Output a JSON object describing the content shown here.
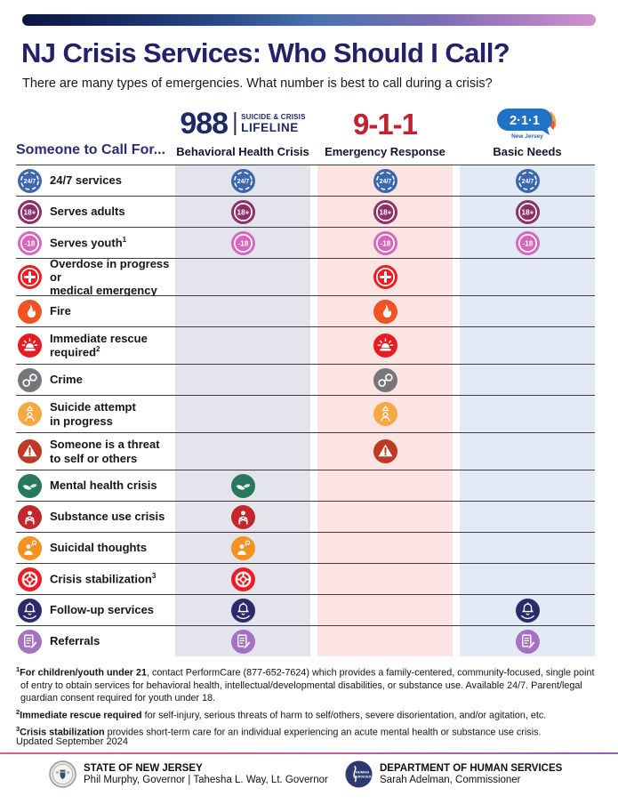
{
  "page": {
    "title": "NJ Crisis Services: Who Should I Call?",
    "subtitle": "There are many types of emergencies. What number is best to call during a crisis?",
    "updated": "Updated September 2024",
    "divider_color": "#3e3e42"
  },
  "columns": [
    {
      "id": "988",
      "logo": {
        "number": "988",
        "tag1": "SUICIDE & CRISIS",
        "tag2": "LIFELINE"
      },
      "label": "Behavioral Health Crisis",
      "band_color": "#e4e5ec",
      "brand_color": "#1d2a63"
    },
    {
      "id": "911",
      "logo": {
        "number": "9-1-1"
      },
      "label": "Emergency Response",
      "band_color": "#fbe4e1",
      "brand_color": "#c22130"
    },
    {
      "id": "211",
      "logo": {
        "number": "2·1·1",
        "sub": "New Jersey"
      },
      "label": "Basic Needs",
      "band_color": "#e2eaf6",
      "brand_color": "#2072c5"
    }
  ],
  "table": {
    "heading": "Someone to Call For...",
    "rows": [
      {
        "label": "24/7 services",
        "icon": "clock-24-7",
        "icon_text": "24/7",
        "color": "#3a67ad",
        "available": [
          true,
          true,
          true
        ]
      },
      {
        "label": "Serves adults",
        "icon": "ring-18-plus",
        "icon_text": "18+",
        "color": "#8e2f68",
        "available": [
          true,
          true,
          true
        ]
      },
      {
        "label": "Serves youth",
        "sup": "1",
        "icon": "ring-under-18",
        "icon_text": "-18",
        "color": "#d667c1",
        "available": [
          true,
          true,
          true
        ]
      },
      {
        "label": "Overdose in progress or\nmedical emergency",
        "icon": "medical-cross",
        "color": "#ec1c24",
        "available": [
          false,
          true,
          false
        ]
      },
      {
        "label": "Fire",
        "icon": "flame",
        "color": "#f05323",
        "available": [
          false,
          true,
          false
        ]
      },
      {
        "label": "Immediate rescue\nrequired",
        "sup": "2",
        "icon": "siren",
        "color": "#e81b23",
        "available": [
          false,
          true,
          false
        ]
      },
      {
        "label": "Crime",
        "icon": "handcuffs",
        "color": "#77767a",
        "available": [
          false,
          true,
          false
        ]
      },
      {
        "label": "Suicide attempt\nin progress",
        "icon": "person-alert",
        "color": "#f6a843",
        "available": [
          false,
          true,
          false
        ]
      },
      {
        "label": "Someone is a threat\nto self or others",
        "icon": "warning-triangle",
        "color": "#bf3a24",
        "available": [
          false,
          true,
          false
        ]
      },
      {
        "label": "Mental health crisis",
        "icon": "helping-hands",
        "color": "#27785c",
        "available": [
          true,
          false,
          false
        ]
      },
      {
        "label": "Substance use crisis",
        "icon": "person-hugging",
        "color": "#c1272d",
        "available": [
          true,
          false,
          false
        ]
      },
      {
        "label": "Suicidal thoughts",
        "icon": "person-thought",
        "color": "#f49120",
        "available": [
          true,
          false,
          false
        ]
      },
      {
        "label": "Crisis stabilization",
        "sup": "3",
        "icon": "life-ring",
        "color": "#ee1c25",
        "available": [
          true,
          false,
          false
        ]
      },
      {
        "label": "Follow-up services",
        "icon": "bell-hand",
        "color": "#2b2a6b",
        "available": [
          true,
          false,
          true
        ]
      },
      {
        "label": "Referrals",
        "icon": "document-pencil",
        "color": "#a571c4",
        "available": [
          true,
          false,
          true
        ]
      }
    ]
  },
  "footnotes": [
    {
      "sup": "1",
      "bold": "For children/youth under 21",
      "rest": ", contact PerformCare (877-652-7624) which provides a family-centered, community-focused, single point of entry to obtain services for behavioral health, intellectual/developmental disabilities, or substance use. Available 24/7. Parent/legal guardian consent required for youth under 18."
    },
    {
      "sup": "2",
      "bold": "Immediate rescue required",
      "rest": " for self-injury, serious threats of harm to self/others, severe disorientation, and/or agitation, etc."
    },
    {
      "sup": "3",
      "bold": "Crisis stabilization",
      "rest": " provides short-term care for an individual experiencing an acute mental health or substance use crisis."
    }
  ],
  "footer": {
    "left": {
      "org": "STATE OF NEW JERSEY",
      "names": "Phil Murphy, Governor | Tahesha L. Way, Lt. Governor"
    },
    "right": {
      "org": "DEPARTMENT OF HUMAN SERVICES",
      "names": "Sarah Adelman, Commissioner",
      "logo_line1": "HUMAN",
      "logo_line2": "SERVICES"
    }
  }
}
